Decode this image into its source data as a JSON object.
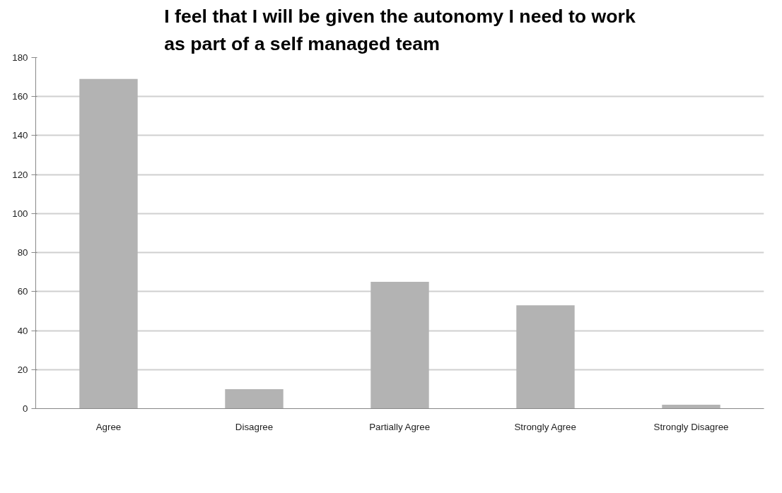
{
  "chart_data": {
    "type": "bar",
    "title": "I feel that I will be given the autonomy I need to work\nas part of a self managed team",
    "categories": [
      "Agree",
      "Disagree",
      "Partially Agree",
      "Strongly Agree",
      "Strongly Disagree"
    ],
    "values": [
      169,
      10,
      65,
      53,
      2
    ],
    "color": "#b3b3b3",
    "ylim": [
      0,
      180
    ],
    "yticks": [
      0,
      20,
      40,
      60,
      80,
      100,
      120,
      140,
      160,
      180
    ],
    "grid": "y"
  }
}
